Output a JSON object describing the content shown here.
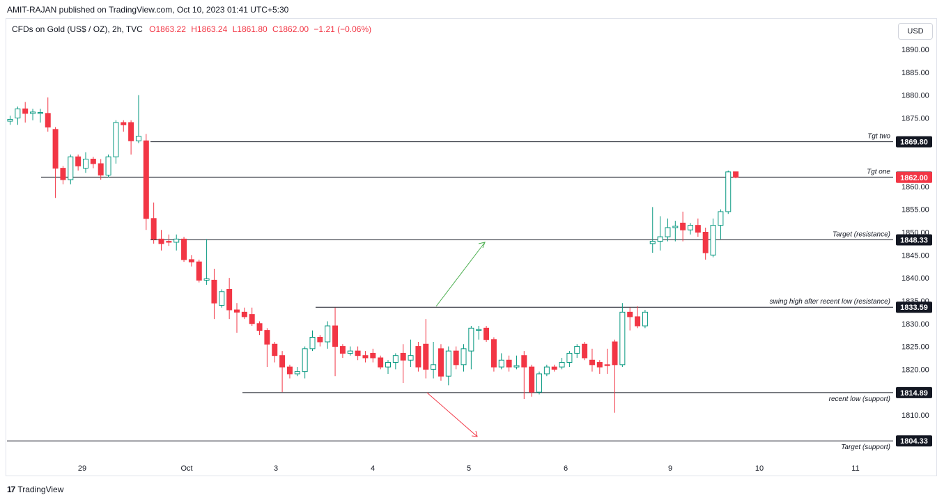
{
  "header": {
    "published": "AMIT-RAJAN published on TradingView.com, Oct 10, 2023 01:41 UTC+5:30",
    "symbol": "CFDs on Gold (US$ / OZ), 2h, TVC",
    "open": "O1863.22",
    "high": "H1863.24",
    "low": "L1861.80",
    "close": "C1862.00",
    "change": "−1.21 (−0.06%)",
    "currency_button": "USD"
  },
  "footer": {
    "brand": "TradingView",
    "logo": "17"
  },
  "colors": {
    "up": "#089981",
    "down": "#f23645",
    "line": "#131722",
    "green_arrow": "#4caf50",
    "red_arrow": "#f23645"
  },
  "chart_data": {
    "type": "candlestick",
    "ylim": [
      1801,
      1895
    ],
    "y_ticks": [
      "1890.00",
      "1885.00",
      "1880.00",
      "1875.00",
      "1860.00",
      "1855.00",
      "1850.00",
      "1845.00",
      "1840.00",
      "1835.00",
      "1830.00",
      "1825.00",
      "1820.00",
      "1815.00",
      "1810.00"
    ],
    "x_ticks": [
      "29",
      "Oct",
      "3",
      "4",
      "5",
      "6",
      "9",
      "10",
      "11"
    ],
    "candles": [
      {
        "o": 1874.3,
        "h": 1875.5,
        "l": 1873.5,
        "c": 1874.7
      },
      {
        "o": 1875.0,
        "h": 1877.5,
        "l": 1873.5,
        "c": 1877.0
      },
      {
        "o": 1877.0,
        "h": 1878.5,
        "l": 1874.0,
        "c": 1876.0
      },
      {
        "o": 1876.0,
        "h": 1877.0,
        "l": 1874.5,
        "c": 1876.3
      },
      {
        "o": 1876.0,
        "h": 1877.0,
        "l": 1874.0,
        "c": 1876.2
      },
      {
        "o": 1876.0,
        "h": 1879.5,
        "l": 1872.0,
        "c": 1873.0
      },
      {
        "o": 1872.5,
        "h": 1873.0,
        "l": 1857.5,
        "c": 1864.0
      },
      {
        "o": 1864.0,
        "h": 1864.5,
        "l": 1860.5,
        "c": 1861.5
      },
      {
        "o": 1861.5,
        "h": 1867.0,
        "l": 1860.5,
        "c": 1866.5
      },
      {
        "o": 1866.5,
        "h": 1867.0,
        "l": 1863.5,
        "c": 1864.5
      },
      {
        "o": 1864.0,
        "h": 1867.5,
        "l": 1863.0,
        "c": 1866.0
      },
      {
        "o": 1866.0,
        "h": 1866.5,
        "l": 1864.0,
        "c": 1865.0
      },
      {
        "o": 1865.0,
        "h": 1866.0,
        "l": 1861.5,
        "c": 1862.5
      },
      {
        "o": 1862.5,
        "h": 1867.0,
        "l": 1862.0,
        "c": 1866.5
      },
      {
        "o": 1866.5,
        "h": 1874.5,
        "l": 1865.0,
        "c": 1874.0
      },
      {
        "o": 1874.0,
        "h": 1874.5,
        "l": 1872.0,
        "c": 1873.5
      },
      {
        "o": 1874.0,
        "h": 1874.5,
        "l": 1867.0,
        "c": 1870.0
      },
      {
        "o": 1870.0,
        "h": 1880.0,
        "l": 1869.5,
        "c": 1871.0
      },
      {
        "o": 1870.0,
        "h": 1871.5,
        "l": 1850.5,
        "c": 1853.0
      },
      {
        "o": 1853.0,
        "h": 1856.5,
        "l": 1847.5,
        "c": 1848.5
      },
      {
        "o": 1848.5,
        "h": 1850.5,
        "l": 1846.0,
        "c": 1847.5
      },
      {
        "o": 1848.0,
        "h": 1849.5,
        "l": 1847.0,
        "c": 1847.8
      },
      {
        "o": 1847.8,
        "h": 1849.5,
        "l": 1846.0,
        "c": 1848.5
      },
      {
        "o": 1848.5,
        "h": 1849.0,
        "l": 1843.5,
        "c": 1844.0
      },
      {
        "o": 1844.0,
        "h": 1845.0,
        "l": 1842.5,
        "c": 1843.5
      },
      {
        "o": 1843.5,
        "h": 1844.0,
        "l": 1839.0,
        "c": 1839.5
      },
      {
        "o": 1839.5,
        "h": 1848.5,
        "l": 1838.5,
        "c": 1839.8
      },
      {
        "o": 1839.5,
        "h": 1842.0,
        "l": 1831.0,
        "c": 1834.5
      },
      {
        "o": 1834.0,
        "h": 1837.5,
        "l": 1833.5,
        "c": 1837.0
      },
      {
        "o": 1837.5,
        "h": 1840.0,
        "l": 1831.0,
        "c": 1833.0
      },
      {
        "o": 1833.0,
        "h": 1834.5,
        "l": 1828.0,
        "c": 1832.5
      },
      {
        "o": 1832.5,
        "h": 1833.5,
        "l": 1831.0,
        "c": 1831.5
      },
      {
        "o": 1832.0,
        "h": 1833.5,
        "l": 1829.5,
        "c": 1830.0
      },
      {
        "o": 1830.0,
        "h": 1830.5,
        "l": 1827.5,
        "c": 1828.5
      },
      {
        "o": 1828.5,
        "h": 1829.0,
        "l": 1820.5,
        "c": 1825.5
      },
      {
        "o": 1825.5,
        "h": 1826.0,
        "l": 1821.5,
        "c": 1823.0
      },
      {
        "o": 1823.0,
        "h": 1824.0,
        "l": 1815.0,
        "c": 1820.5
      },
      {
        "o": 1820.5,
        "h": 1821.0,
        "l": 1818.0,
        "c": 1819.0
      },
      {
        "o": 1819.0,
        "h": 1820.5,
        "l": 1818.5,
        "c": 1819.5
      },
      {
        "o": 1819.5,
        "h": 1825.0,
        "l": 1818.0,
        "c": 1824.5
      },
      {
        "o": 1824.5,
        "h": 1828.5,
        "l": 1824.0,
        "c": 1827.0
      },
      {
        "o": 1827.0,
        "h": 1827.5,
        "l": 1825.0,
        "c": 1826.0
      },
      {
        "o": 1826.0,
        "h": 1830.5,
        "l": 1824.5,
        "c": 1829.5
      },
      {
        "o": 1829.5,
        "h": 1833.5,
        "l": 1818.5,
        "c": 1825.0
      },
      {
        "o": 1825.0,
        "h": 1825.5,
        "l": 1822.5,
        "c": 1823.5
      },
      {
        "o": 1823.5,
        "h": 1825.0,
        "l": 1823.0,
        "c": 1824.0
      },
      {
        "o": 1824.0,
        "h": 1825.0,
        "l": 1822.0,
        "c": 1823.0
      },
      {
        "o": 1823.0,
        "h": 1824.0,
        "l": 1821.5,
        "c": 1822.5
      },
      {
        "o": 1823.5,
        "h": 1824.5,
        "l": 1821.5,
        "c": 1822.5
      },
      {
        "o": 1822.5,
        "h": 1823.0,
        "l": 1820.0,
        "c": 1820.5
      },
      {
        "o": 1820.5,
        "h": 1822.0,
        "l": 1819.0,
        "c": 1821.5
      },
      {
        "o": 1821.5,
        "h": 1823.5,
        "l": 1820.0,
        "c": 1823.0
      },
      {
        "o": 1823.5,
        "h": 1825.5,
        "l": 1817.0,
        "c": 1822.0
      },
      {
        "o": 1822.0,
        "h": 1826.5,
        "l": 1820.5,
        "c": 1823.0
      },
      {
        "o": 1825.0,
        "h": 1826.0,
        "l": 1819.5,
        "c": 1820.5
      },
      {
        "o": 1825.5,
        "h": 1831.0,
        "l": 1818.0,
        "c": 1820.0
      },
      {
        "o": 1820.0,
        "h": 1826.0,
        "l": 1818.0,
        "c": 1821.0
      },
      {
        "o": 1824.5,
        "h": 1825.5,
        "l": 1817.5,
        "c": 1818.5
      },
      {
        "o": 1818.5,
        "h": 1825.0,
        "l": 1816.5,
        "c": 1824.0
      },
      {
        "o": 1824.0,
        "h": 1825.0,
        "l": 1820.0,
        "c": 1821.0
      },
      {
        "o": 1821.0,
        "h": 1825.5,
        "l": 1819.5,
        "c": 1824.5
      },
      {
        "o": 1824.0,
        "h": 1829.5,
        "l": 1820.0,
        "c": 1829.0
      },
      {
        "o": 1828.5,
        "h": 1829.5,
        "l": 1826.5,
        "c": 1828.7
      },
      {
        "o": 1829.0,
        "h": 1829.5,
        "l": 1826.0,
        "c": 1826.5
      },
      {
        "o": 1826.5,
        "h": 1827.0,
        "l": 1819.5,
        "c": 1820.5
      },
      {
        "o": 1820.5,
        "h": 1823.5,
        "l": 1820.0,
        "c": 1822.0
      },
      {
        "o": 1822.0,
        "h": 1823.0,
        "l": 1819.5,
        "c": 1820.5
      },
      {
        "o": 1820.5,
        "h": 1823.0,
        "l": 1820.0,
        "c": 1820.8
      },
      {
        "o": 1823.0,
        "h": 1824.0,
        "l": 1813.5,
        "c": 1820.5
      },
      {
        "o": 1820.5,
        "h": 1821.0,
        "l": 1814.0,
        "c": 1815.0
      },
      {
        "o": 1815.0,
        "h": 1819.5,
        "l": 1814.5,
        "c": 1819.0
      },
      {
        "o": 1819.0,
        "h": 1821.0,
        "l": 1818.5,
        "c": 1820.5
      },
      {
        "o": 1820.5,
        "h": 1821.0,
        "l": 1819.5,
        "c": 1820.0
      },
      {
        "o": 1820.5,
        "h": 1822.5,
        "l": 1820.0,
        "c": 1821.5
      },
      {
        "o": 1821.5,
        "h": 1824.0,
        "l": 1820.5,
        "c": 1823.5
      },
      {
        "o": 1823.5,
        "h": 1825.5,
        "l": 1822.5,
        "c": 1825.0
      },
      {
        "o": 1825.5,
        "h": 1826.0,
        "l": 1822.0,
        "c": 1822.5
      },
      {
        "o": 1822.0,
        "h": 1824.5,
        "l": 1819.5,
        "c": 1821.0
      },
      {
        "o": 1821.5,
        "h": 1822.0,
        "l": 1819.0,
        "c": 1820.5
      },
      {
        "o": 1821.0,
        "h": 1824.5,
        "l": 1819.0,
        "c": 1820.8
      },
      {
        "o": 1826.0,
        "h": 1826.5,
        "l": 1810.5,
        "c": 1821.0
      },
      {
        "o": 1821.0,
        "h": 1834.5,
        "l": 1820.5,
        "c": 1832.5
      },
      {
        "o": 1832.5,
        "h": 1833.5,
        "l": 1828.5,
        "c": 1831.5
      },
      {
        "o": 1831.5,
        "h": 1833.8,
        "l": 1829.0,
        "c": 1829.5
      },
      {
        "o": 1829.5,
        "h": 1833.0,
        "l": 1829.0,
        "c": 1832.5
      },
      {
        "o": 1847.5,
        "h": 1855.5,
        "l": 1845.5,
        "c": 1848.0
      },
      {
        "o": 1848.0,
        "h": 1853.5,
        "l": 1846.0,
        "c": 1849.0
      },
      {
        "o": 1849.0,
        "h": 1853.0,
        "l": 1848.0,
        "c": 1851.0
      },
      {
        "o": 1851.0,
        "h": 1852.5,
        "l": 1848.0,
        "c": 1851.3
      },
      {
        "o": 1852.0,
        "h": 1854.5,
        "l": 1848.0,
        "c": 1850.5
      },
      {
        "o": 1850.5,
        "h": 1852.0,
        "l": 1849.5,
        "c": 1851.5
      },
      {
        "o": 1851.5,
        "h": 1853.0,
        "l": 1849.0,
        "c": 1850.0
      },
      {
        "o": 1850.0,
        "h": 1851.0,
        "l": 1844.0,
        "c": 1845.5
      },
      {
        "o": 1845.0,
        "h": 1853.0,
        "l": 1844.5,
        "c": 1851.5
      },
      {
        "o": 1851.5,
        "h": 1855.0,
        "l": 1848.5,
        "c": 1854.5
      },
      {
        "o": 1854.5,
        "h": 1863.5,
        "l": 1854.0,
        "c": 1863.2
      },
      {
        "o": 1863.22,
        "h": 1863.24,
        "l": 1861.8,
        "c": 1862.0
      }
    ],
    "levels": [
      {
        "price": 1869.8,
        "tag": "1869.80",
        "note": "Tgt two",
        "color": "#131722"
      },
      {
        "price": 1862.06,
        "tag": "1862.06",
        "note": "Tgt one",
        "color": "#131722"
      },
      {
        "price": 1848.33,
        "tag": "1848.33",
        "note": "Target (resistance)",
        "color": "#131722"
      },
      {
        "price": 1833.59,
        "tag": "1833.59",
        "note": "swing high after recent low (resistance)",
        "color": "#131722"
      },
      {
        "price": 1814.89,
        "tag": "1814.89",
        "note": "recent low (support)",
        "color": "#131722"
      },
      {
        "price": 1804.33,
        "tag": "1804.33",
        "note": "Target (support)",
        "color": "#131722"
      }
    ],
    "last_price": {
      "price": 1862.0,
      "tag": "1862.00",
      "color": "#f23645"
    }
  }
}
